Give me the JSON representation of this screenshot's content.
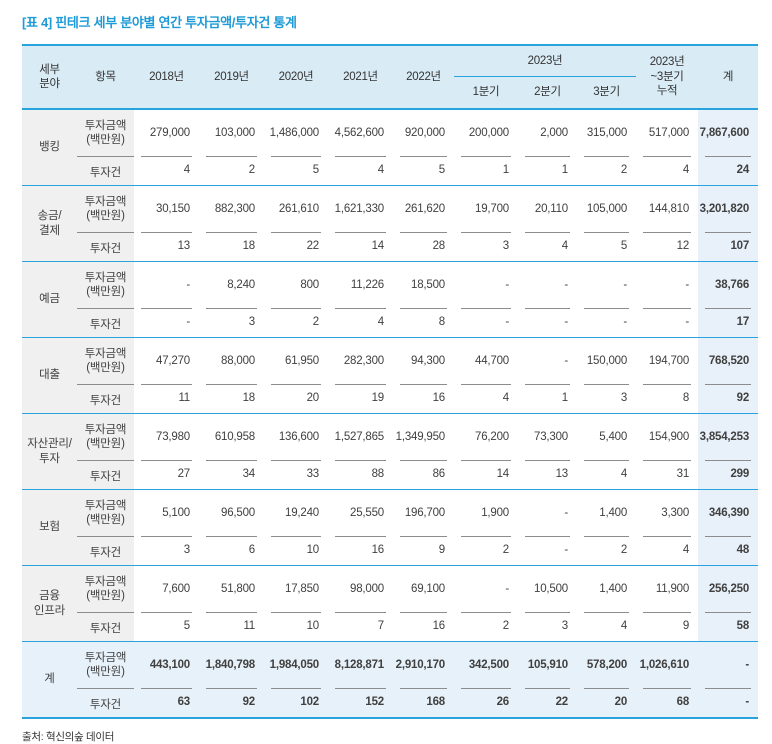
{
  "title": "[표 4] 핀테크 세부 분야별 연간 투자금액/투자건 통계",
  "source": "출처: 혁신의숲 데이터",
  "colors": {
    "title_blue": "#1e9bd7",
    "accent_line_blue": "#29a3dc",
    "header_bg": "#d9ebf5",
    "label_col_bg": "#f0f0f0",
    "total_bg": "#e7f1f9",
    "grand_col_bg": "#e8f1f9",
    "divider_gray": "#8c8c8c"
  },
  "header": {
    "sector": "세부\n분야",
    "item": "항목",
    "years": [
      "2018년",
      "2019년",
      "2020년",
      "2021년",
      "2022년"
    ],
    "y2023": "2023년",
    "quarters": [
      "1분기",
      "2분기",
      "3분기"
    ],
    "cumulative": "2023년\n~3분기\n누적",
    "total": "계"
  },
  "row_labels": {
    "amount": "투자금액\n(백만원)",
    "count": "투자건"
  },
  "groups": [
    {
      "sector": "뱅킹",
      "amounts": [
        "279,000",
        "103,000",
        "1,486,000",
        "4,562,600",
        "920,000",
        "200,000",
        "2,000",
        "315,000",
        "517,000",
        "7,867,600"
      ],
      "counts": [
        "4",
        "2",
        "5",
        "4",
        "5",
        "1",
        "1",
        "2",
        "4",
        "24"
      ]
    },
    {
      "sector": "송금/\n결제",
      "amounts": [
        "30,150",
        "882,300",
        "261,610",
        "1,621,330",
        "261,620",
        "19,700",
        "20,110",
        "105,000",
        "144,810",
        "3,201,820"
      ],
      "counts": [
        "13",
        "18",
        "22",
        "14",
        "28",
        "3",
        "4",
        "5",
        "12",
        "107"
      ]
    },
    {
      "sector": "예금",
      "amounts": [
        "-",
        "8,240",
        "800",
        "11,226",
        "18,500",
        "-",
        "-",
        "-",
        "-",
        "38,766"
      ],
      "counts": [
        "-",
        "3",
        "2",
        "4",
        "8",
        "-",
        "-",
        "-",
        "-",
        "17"
      ]
    },
    {
      "sector": "대출",
      "amounts": [
        "47,270",
        "88,000",
        "61,950",
        "282,300",
        "94,300",
        "44,700",
        "-",
        "150,000",
        "194,700",
        "768,520"
      ],
      "counts": [
        "11",
        "18",
        "20",
        "19",
        "16",
        "4",
        "1",
        "3",
        "8",
        "92"
      ]
    },
    {
      "sector": "자산관리/\n투자",
      "amounts": [
        "73,980",
        "610,958",
        "136,600",
        "1,527,865",
        "1,349,950",
        "76,200",
        "73,300",
        "5,400",
        "154,900",
        "3,854,253"
      ],
      "counts": [
        "27",
        "34",
        "33",
        "88",
        "86",
        "14",
        "13",
        "4",
        "31",
        "299"
      ]
    },
    {
      "sector": "보험",
      "amounts": [
        "5,100",
        "96,500",
        "19,240",
        "25,550",
        "196,700",
        "1,900",
        "-",
        "1,400",
        "3,300",
        "346,390"
      ],
      "counts": [
        "3",
        "6",
        "10",
        "16",
        "9",
        "2",
        "-",
        "2",
        "4",
        "48"
      ]
    },
    {
      "sector": "금융\n인프라",
      "amounts": [
        "7,600",
        "51,800",
        "17,850",
        "98,000",
        "69,100",
        "-",
        "10,500",
        "1,400",
        "11,900",
        "256,250"
      ],
      "counts": [
        "5",
        "11",
        "10",
        "7",
        "16",
        "2",
        "3",
        "4",
        "9",
        "58"
      ]
    },
    {
      "sector": "계",
      "is_total": true,
      "amounts": [
        "443,100",
        "1,840,798",
        "1,984,050",
        "8,128,871",
        "2,910,170",
        "342,500",
        "105,910",
        "578,200",
        "1,026,610",
        "-"
      ],
      "counts": [
        "63",
        "92",
        "102",
        "152",
        "168",
        "26",
        "22",
        "20",
        "68",
        "-"
      ]
    }
  ]
}
